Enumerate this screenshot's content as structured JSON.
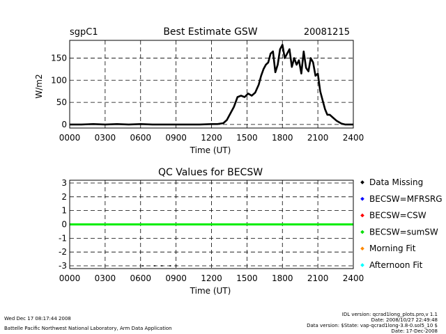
{
  "chart_data": [
    {
      "type": "line",
      "site": "sgpC1",
      "title": "Best Estimate GSW",
      "date": "20081215",
      "xlabel": "Time (UT)",
      "ylabel": "W/m2",
      "xlim": [
        0,
        2400
      ],
      "ylim": [
        -8,
        190
      ],
      "x_ticks": [
        "0000",
        "0300",
        "0600",
        "0900",
        "1200",
        "1500",
        "1800",
        "2100",
        "2400"
      ],
      "y_ticks": [
        "0",
        "50",
        "100",
        "150"
      ],
      "grid": true,
      "series": [
        {
          "color": "#000000",
          "x": [
            0,
            100,
            200,
            300,
            400,
            500,
            600,
            700,
            800,
            900,
            1000,
            1100,
            1200,
            1250,
            1300,
            1330,
            1360,
            1390,
            1420,
            1450,
            1480,
            1510,
            1540,
            1570,
            1600,
            1620,
            1640,
            1660,
            1680,
            1700,
            1720,
            1740,
            1760,
            1780,
            1800,
            1820,
            1840,
            1860,
            1880,
            1900,
            1920,
            1940,
            1960,
            1980,
            2000,
            2020,
            2040,
            2060,
            2080,
            2100,
            2120,
            2140,
            2160,
            2180,
            2200,
            2230,
            2260,
            2300,
            2330,
            2360,
            2400
          ],
          "values": [
            0,
            0,
            1,
            0,
            1,
            0,
            1,
            0,
            0,
            0,
            0,
            0,
            1,
            1,
            3,
            10,
            25,
            40,
            62,
            65,
            62,
            70,
            65,
            72,
            90,
            110,
            125,
            135,
            140,
            160,
            165,
            118,
            135,
            170,
            180,
            150,
            160,
            170,
            130,
            150,
            135,
            145,
            115,
            165,
            128,
            120,
            150,
            140,
            110,
            115,
            75,
            55,
            35,
            22,
            22,
            15,
            8,
            2,
            0,
            0,
            0
          ]
        }
      ]
    },
    {
      "type": "line",
      "title": "QC Values for BECSW",
      "xlabel": "Time (UT)",
      "xlim": [
        0,
        2400
      ],
      "ylim": [
        -3.2,
        3.2
      ],
      "x_ticks": [
        "0000",
        "0300",
        "0600",
        "0900",
        "1200",
        "1500",
        "1800",
        "2100",
        "2400"
      ],
      "y_ticks": [
        "3",
        "2",
        "1",
        "0",
        "-1",
        "-2",
        "-3"
      ],
      "grid": true,
      "series": [
        {
          "name": "BECSW=sumSW",
          "color": "#00ee00",
          "x": [
            0,
            2400
          ],
          "values": [
            0,
            0
          ]
        }
      ],
      "missing_points": {
        "x": [
          620,
          720,
          780,
          850,
          900
        ],
        "values": [
          -3,
          -3,
          -3,
          -3,
          -3
        ]
      },
      "legend": [
        {
          "label": "Data Missing",
          "color": "#000000"
        },
        {
          "label": "BECSW=MFRSRG",
          "color": "#0000ff"
        },
        {
          "label": "BECSW=CSW",
          "color": "#ff0000"
        },
        {
          "label": "BECSW=sumSW",
          "color": "#00dd00"
        },
        {
          "label": "Morning Fit",
          "color": "#ff8800"
        },
        {
          "label": "Afternoon Fit",
          "color": "#00ffff"
        }
      ],
      "legend_position": "right"
    }
  ],
  "footer": {
    "timestamp": "Wed Dec 17 08:17:44 2008",
    "lab": "Battelle Pacific Northwest National Laboratory, Arm Data Application",
    "idl_version": "IDL version: qcrad1long_plots.pro,v 1.1",
    "idl_date": "Date: 2008/10/27 22:49:48",
    "data_version": "Data version: $State: vap-qcrad1long-3.8-0.sol5_10 $",
    "data_date": "Date: 17-Dec-2008"
  }
}
